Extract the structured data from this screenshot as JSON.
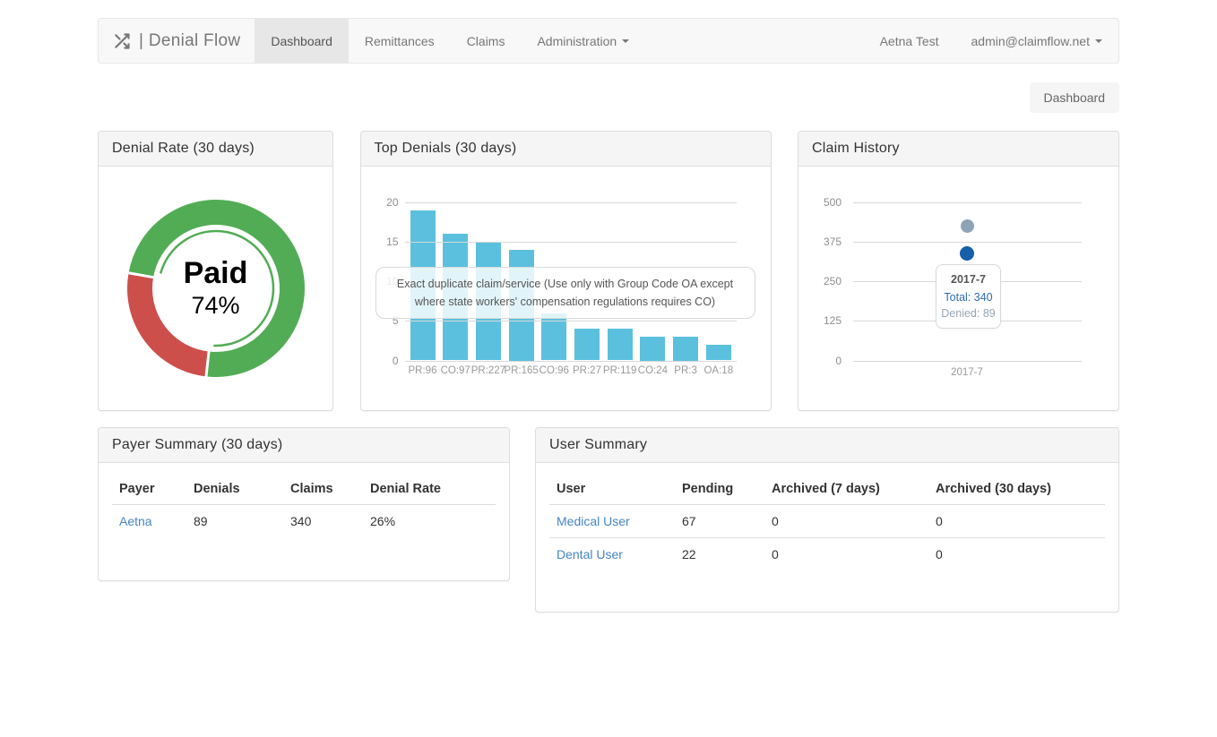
{
  "navbar": {
    "brand": "| Denial Flow",
    "items": [
      {
        "label": "Dashboard",
        "active": true
      },
      {
        "label": "Remittances",
        "active": false
      },
      {
        "label": "Claims",
        "active": false
      },
      {
        "label": "Administration",
        "active": false,
        "dropdown": true
      }
    ],
    "customer": "Aetna Test",
    "user_menu": "admin@claimflow.net"
  },
  "breadcrumb": "Dashboard",
  "panels": {
    "denial_rate": {
      "title": "Denial Rate (30 days)"
    },
    "top_denials": {
      "title": "Top Denials (30 days)"
    },
    "claim_history": {
      "title": "Claim History"
    },
    "payer_summary": {
      "title": "Payer Summary (30 days)"
    },
    "user_summary": {
      "title": "User Summary"
    }
  },
  "chart_data": [
    {
      "type": "pie",
      "title": "Denial Rate (30 days)",
      "slices": [
        {
          "label": "Paid",
          "value": 74,
          "color": "#52ac55"
        },
        {
          "label": "Denied",
          "value": 26,
          "color": "#cc4f4b"
        }
      ],
      "center_label": "Paid",
      "center_value": "74%",
      "start_angle_deg": 280
    },
    {
      "type": "bar",
      "title": "Top Denials (30 days)",
      "categories": [
        "PR:96",
        "CO:97",
        "PR:227",
        "PR:165",
        "CO:96",
        "PR:27",
        "PR:119",
        "CO:24",
        "PR:3",
        "OA:18"
      ],
      "values": [
        19,
        16,
        15,
        14,
        6,
        4,
        4,
        3,
        3,
        2
      ],
      "ylim": [
        0,
        20
      ],
      "yticks": [
        0,
        5,
        10,
        15,
        20
      ],
      "bar_color": "#5bc0de",
      "grid": true,
      "tooltip": "Exact duplicate claim/service (Use only with Group Code OA except where state workers' compensation regulations requires CO)"
    },
    {
      "type": "scatter",
      "title": "Claim History",
      "categories": [
        "2017-7"
      ],
      "ylim": [
        0,
        500
      ],
      "yticks": [
        0,
        125,
        250,
        375,
        500
      ],
      "grid": true,
      "points": [
        {
          "y": 425,
          "color": "#8fa3b6",
          "r": 7.5
        },
        {
          "y": 340,
          "color": "#155ea8",
          "r": 8
        }
      ],
      "tooltip": {
        "title": "2017-7",
        "total": "Total: 340",
        "denied": "Denied: 89"
      }
    }
  ],
  "payer_summary": {
    "headers": [
      "Payer",
      "Denials",
      "Claims",
      "Denial Rate"
    ],
    "rows": [
      {
        "payer": "Aetna",
        "denials": "89",
        "claims": "340",
        "denial_rate": "26%"
      }
    ]
  },
  "user_summary": {
    "headers": [
      "User",
      "Pending",
      "Archived (7 days)",
      "Archived (30 days)"
    ],
    "rows": [
      {
        "user": "Medical User",
        "pending": "67",
        "archived7": "0",
        "archived30": "0"
      },
      {
        "user": "Dental User",
        "pending": "22",
        "archived7": "0",
        "archived30": "0"
      }
    ]
  }
}
